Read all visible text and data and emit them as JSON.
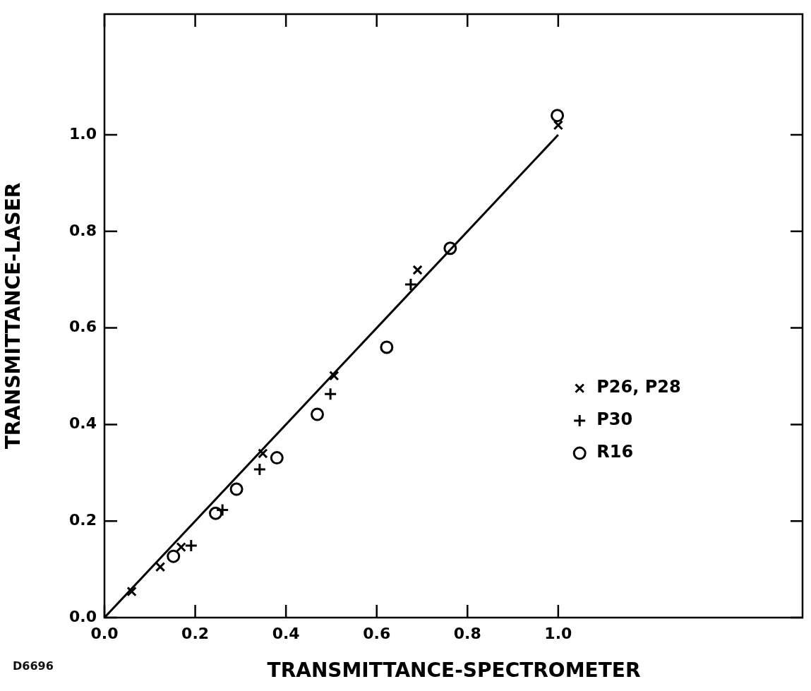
{
  "chart_data": {
    "type": "scatter",
    "xlabel": "TRANSMITTANCE-SPECTROMETER",
    "ylabel": "TRANSMITTANCE-LASER",
    "xlim": [
      0,
      1.54
    ],
    "ylim": [
      0,
      1.25
    ],
    "xticks": [
      {
        "value": 0,
        "label": "0.0"
      },
      0.2,
      0.4,
      0.6,
      0.8,
      {
        "value": 1,
        "label": "1.0"
      }
    ],
    "yticks": [
      {
        "value": 0,
        "label": "0.0"
      },
      0.2,
      0.4,
      0.6,
      0.8,
      {
        "value": 1,
        "label": "1.0"
      }
    ],
    "legend": "bottom right",
    "annotations": [
      "D6696"
    ],
    "series": [
      {
        "name": "P26, P28",
        "color": "#000000",
        "marker": "x",
        "x": [
          0.06,
          0.123,
          0.169,
          0.349,
          0.506,
          0.69,
          1.0
        ],
        "values": [
          0.054,
          0.105,
          0.146,
          0.34,
          0.501,
          0.72,
          1.02
        ]
      },
      {
        "name": "P30",
        "color": "#000000",
        "marker": "cross",
        "x": [
          0.191,
          0.26,
          0.342,
          0.498,
          0.675
        ],
        "values": [
          0.149,
          0.223,
          0.307,
          0.463,
          0.69
        ]
      },
      {
        "name": "R16",
        "color": "#000000",
        "marker": "circle",
        "x": [
          0.152,
          0.245,
          0.291,
          0.38,
          0.469,
          0.622,
          0.762,
          0.998
        ],
        "values": [
          0.127,
          0.216,
          0.266,
          0.331,
          0.421,
          0.56,
          0.765,
          1.04
        ]
      },
      {
        "type": "line",
        "color": "#000000",
        "marker": "none",
        "line_style": "solid",
        "x": [
          0,
          1.0
        ],
        "values": [
          0,
          1.0
        ]
      }
    ]
  }
}
